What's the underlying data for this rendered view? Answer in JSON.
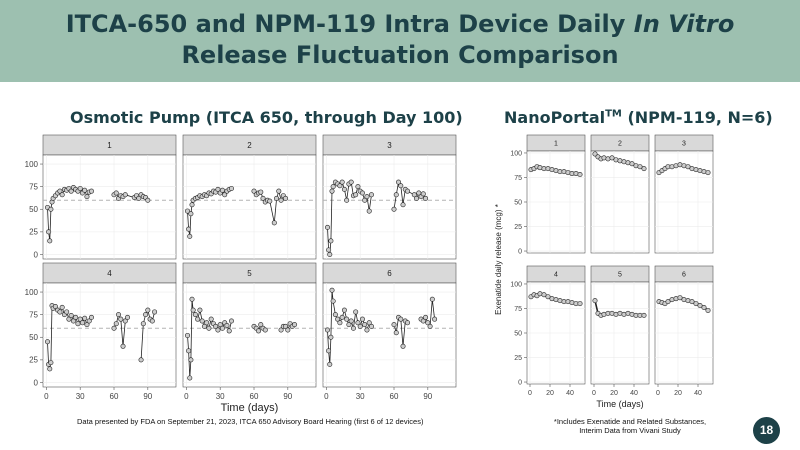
{
  "header": {
    "title_line1_prefix": "ITCA-650 and NPM-119 Intra Device Daily ",
    "title_line1_italic": "In Vitro",
    "title_line2": "Release Fluctuation Comparison"
  },
  "left": {
    "title": "Osmotic Pump (ITCA 650, through Day 100)",
    "footnote": "Data presented by FDA on September 21, 2023, ITCA 650 Advisory Board Hearing (first 6 of 12 devices)"
  },
  "right": {
    "title_prefix": "NanoPortal",
    "title_sup": "TM",
    "title_suffix": " (NPM-119, N=6)",
    "footnote_line1": "*Includes Exenatide and Related Substances,",
    "footnote_line2": "Interim Data from Vivani Study"
  },
  "page_number": "18",
  "colors": {
    "banner": "#9dc0b0",
    "title_text": "#1d4148",
    "strip": "#d9d9d9",
    "refline": "#b3b3b3",
    "point_fill": "#cccccc"
  },
  "chart_data": [
    {
      "type": "scatter",
      "title": "Osmotic Pump (ITCA 650, through Day 100)",
      "xlabel": "Time (days)",
      "ylabel": "",
      "xlim": [
        -3,
        115
      ],
      "ylim": [
        -5,
        110
      ],
      "xticks": [
        0,
        30,
        60,
        90
      ],
      "yticks": [
        0,
        25,
        50,
        75,
        100
      ],
      "reference_line": 60,
      "panels": [
        {
          "label": "1",
          "x": [
            1,
            2,
            3,
            4,
            5,
            6,
            8,
            10,
            12,
            14,
            16,
            18,
            20,
            22,
            24,
            26,
            28,
            30,
            32,
            34,
            36,
            38,
            40,
            60,
            62,
            64,
            66,
            68,
            70,
            78,
            80,
            82,
            84,
            86,
            88,
            90
          ],
          "y": [
            52,
            25,
            15,
            50,
            58,
            62,
            65,
            68,
            70,
            66,
            72,
            71,
            73,
            70,
            74,
            72,
            70,
            73,
            68,
            71,
            64,
            69,
            70,
            66,
            68,
            62,
            65,
            64,
            66,
            63,
            65,
            62,
            66,
            64,
            63,
            60
          ]
        },
        {
          "label": "2",
          "x": [
            1,
            2,
            3,
            4,
            5,
            6,
            8,
            10,
            12,
            14,
            16,
            18,
            20,
            22,
            24,
            26,
            28,
            30,
            32,
            34,
            36,
            38,
            40,
            60,
            62,
            64,
            66,
            68,
            70,
            72,
            74,
            78,
            80,
            82,
            84,
            86,
            88
          ],
          "y": [
            48,
            28,
            20,
            45,
            55,
            60,
            62,
            63,
            65,
            64,
            66,
            65,
            68,
            67,
            70,
            69,
            72,
            68,
            71,
            66,
            70,
            72,
            73,
            70,
            66,
            68,
            69,
            62,
            58,
            60,
            59,
            35,
            62,
            70,
            60,
            65,
            62
          ]
        },
        {
          "label": "3",
          "x": [
            1,
            2,
            3,
            4,
            5,
            6,
            8,
            10,
            12,
            14,
            16,
            18,
            20,
            22,
            24,
            26,
            28,
            30,
            32,
            34,
            36,
            38,
            40,
            60,
            62,
            64,
            66,
            68,
            70,
            72,
            78,
            80,
            82,
            84,
            86,
            88
          ],
          "y": [
            30,
            5,
            0,
            15,
            70,
            75,
            80,
            78,
            76,
            80,
            72,
            60,
            78,
            80,
            65,
            66,
            75,
            70,
            68,
            60,
            64,
            48,
            66,
            50,
            66,
            80,
            76,
            55,
            72,
            70,
            66,
            62,
            68,
            64,
            67,
            62
          ]
        },
        {
          "label": "4",
          "x": [
            1,
            2,
            3,
            4,
            5,
            6,
            8,
            10,
            12,
            14,
            16,
            18,
            20,
            22,
            24,
            26,
            28,
            30,
            32,
            34,
            36,
            38,
            40,
            60,
            62,
            64,
            66,
            68,
            70,
            72,
            84,
            86,
            88,
            90,
            92,
            94,
            96
          ],
          "y": [
            45,
            20,
            15,
            22,
            85,
            82,
            84,
            80,
            78,
            83,
            75,
            78,
            70,
            74,
            68,
            72,
            65,
            70,
            66,
            71,
            64,
            68,
            72,
            60,
            65,
            75,
            70,
            40,
            68,
            72,
            25,
            65,
            75,
            80,
            70,
            68,
            78
          ]
        },
        {
          "label": "5",
          "x": [
            1,
            2,
            3,
            4,
            5,
            6,
            8,
            10,
            12,
            14,
            16,
            18,
            20,
            22,
            24,
            26,
            28,
            30,
            32,
            34,
            36,
            38,
            40,
            60,
            62,
            64,
            66,
            68,
            70,
            84,
            86,
            88,
            90,
            92,
            94,
            96
          ],
          "y": [
            52,
            35,
            5,
            25,
            92,
            80,
            75,
            70,
            80,
            68,
            62,
            66,
            60,
            70,
            65,
            62,
            58,
            64,
            60,
            66,
            63,
            57,
            68,
            62,
            60,
            57,
            64,
            60,
            58,
            58,
            62,
            62,
            58,
            65,
            62,
            64
          ]
        },
        {
          "label": "6",
          "x": [
            1,
            2,
            3,
            4,
            5,
            6,
            8,
            10,
            12,
            14,
            16,
            18,
            20,
            22,
            24,
            26,
            28,
            30,
            32,
            34,
            36,
            38,
            40,
            60,
            62,
            64,
            66,
            68,
            70,
            72,
            84,
            86,
            88,
            90,
            92,
            94,
            96
          ],
          "y": [
            58,
            35,
            20,
            50,
            102,
            90,
            75,
            70,
            66,
            72,
            80,
            70,
            64,
            68,
            60,
            78,
            66,
            62,
            70,
            64,
            58,
            66,
            62,
            64,
            55,
            72,
            70,
            40,
            68,
            66,
            70,
            68,
            72,
            66,
            62,
            92,
            70
          ]
        }
      ]
    },
    {
      "type": "line",
      "title": "NanoPortal (NPM-119, N=6)",
      "xlabel": "Time (days)",
      "ylabel": "Exenatide daily release (mcg)",
      "ylabel_suffix": "*",
      "xlim": [
        -3,
        55
      ],
      "ylim": [
        -2,
        102
      ],
      "xticks": [
        0,
        20,
        40
      ],
      "yticks": [
        0,
        25,
        50,
        75,
        100
      ],
      "panels": [
        {
          "label": "1",
          "x": [
            1,
            4,
            7,
            10,
            14,
            18,
            22,
            26,
            30,
            34,
            38,
            42,
            46,
            50
          ],
          "y": [
            83,
            84,
            86,
            85,
            84,
            84,
            83,
            82,
            81,
            81,
            80,
            79,
            79,
            78
          ]
        },
        {
          "label": "2",
          "x": [
            1,
            4,
            7,
            10,
            14,
            18,
            22,
            26,
            30,
            34,
            38,
            42,
            46,
            50
          ],
          "y": [
            99,
            96,
            94,
            95,
            94,
            95,
            93,
            92,
            91,
            90,
            89,
            87,
            86,
            84
          ]
        },
        {
          "label": "3",
          "x": [
            1,
            4,
            7,
            10,
            14,
            18,
            22,
            26,
            30,
            34,
            38,
            42,
            46,
            50
          ],
          "y": [
            80,
            82,
            84,
            86,
            86,
            87,
            88,
            87,
            86,
            84,
            83,
            82,
            81,
            80
          ]
        },
        {
          "label": "4",
          "x": [
            1,
            4,
            7,
            10,
            14,
            18,
            22,
            26,
            30,
            34,
            38,
            42,
            46,
            50
          ],
          "y": [
            87,
            89,
            88,
            90,
            89,
            87,
            85,
            84,
            83,
            82,
            82,
            81,
            80,
            80
          ]
        },
        {
          "label": "5",
          "x": [
            1,
            4,
            7,
            10,
            14,
            18,
            22,
            26,
            30,
            34,
            38,
            42,
            46,
            50
          ],
          "y": [
            83,
            70,
            68,
            69,
            70,
            70,
            69,
            70,
            69,
            70,
            69,
            68,
            68,
            68
          ]
        },
        {
          "label": "6",
          "x": [
            1,
            4,
            7,
            10,
            14,
            18,
            22,
            26,
            30,
            34,
            38,
            42,
            46,
            50
          ],
          "y": [
            82,
            81,
            80,
            82,
            84,
            85,
            86,
            84,
            83,
            82,
            80,
            78,
            76,
            73
          ]
        }
      ]
    }
  ]
}
